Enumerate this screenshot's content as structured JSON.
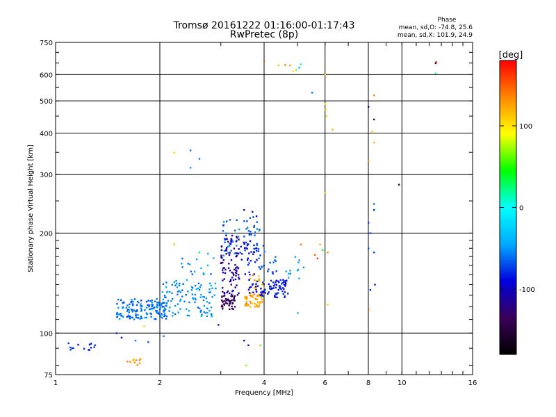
{
  "chart_data": {
    "type": "scatter",
    "title": "Tromsø 20161222 01:16:00-01:17:43",
    "subtitle": "RwPretec (8p)",
    "xlabel": "Frequency [MHz]",
    "ylabel": "Stationary phase Virtual Height [km]",
    "x_scale": "log",
    "y_scale": "log",
    "xlim": [
      1,
      16
    ],
    "ylim": [
      75,
      750
    ],
    "x_ticks": [
      1,
      2,
      4,
      6,
      8,
      10,
      16
    ],
    "y_ticks": [
      75,
      100,
      200,
      300,
      400,
      500,
      600,
      750
    ],
    "grid": true,
    "colorbar": {
      "label": "[deg]",
      "range": [
        -180,
        180
      ],
      "ticks": [
        100,
        0,
        -100
      ],
      "colors": [
        "#000000",
        "#3a005a",
        "#0000dd",
        "#00aaff",
        "#00ffff",
        "#00ff00",
        "#ffff00",
        "#ff8800",
        "#ff0000"
      ]
    },
    "annotation": {
      "title": "Phase",
      "line_o": "mean, sd,O: -74.8, 25.6",
      "line_x": "mean, sd,X: 101.9, 24.9"
    },
    "clusters": [
      {
        "f": [
          1.05,
          1.3
        ],
        "h": [
          88,
          94
        ],
        "phase": [
          -95,
          -70
        ],
        "n": 14
      },
      {
        "f": [
          1.5,
          2.1
        ],
        "h": [
          110,
          127
        ],
        "phase": [
          -75,
          -45
        ],
        "n": 150
      },
      {
        "f": [
          2.0,
          2.9
        ],
        "h": [
          112,
          145
        ],
        "phase": [
          -65,
          -40
        ],
        "n": 110
      },
      {
        "f": [
          2.3,
          2.9
        ],
        "h": [
          145,
          175
        ],
        "phase": [
          -70,
          -40
        ],
        "n": 15
      },
      {
        "f": [
          3.0,
          3.3
        ],
        "h": [
          118,
          130
        ],
        "phase": [
          -150,
          -125
        ],
        "n": 45
      },
      {
        "f": [
          3.0,
          3.4
        ],
        "h": [
          130,
          200
        ],
        "phase": [
          -130,
          -95
        ],
        "n": 90
      },
      {
        "f": [
          3.0,
          3.4
        ],
        "h": [
          170,
          220
        ],
        "phase": [
          -75,
          -50
        ],
        "n": 25
      },
      {
        "f": [
          3.4,
          3.9
        ],
        "h": [
          150,
          190
        ],
        "phase": [
          -100,
          -70
        ],
        "n": 40
      },
      {
        "f": [
          3.5,
          3.9
        ],
        "h": [
          195,
          225
        ],
        "phase": [
          -75,
          -55
        ],
        "n": 20
      },
      {
        "f": [
          3.5,
          3.95
        ],
        "h": [
          120,
          130
        ],
        "phase": [
          110,
          140
        ],
        "n": 45
      },
      {
        "f": [
          3.6,
          4.0
        ],
        "h": [
          130,
          150
        ],
        "phase": [
          100,
          145
        ],
        "n": 25
      },
      {
        "f": [
          3.6,
          4.0
        ],
        "h": [
          130,
          145
        ],
        "phase": [
          -110,
          -80
        ],
        "n": 15
      },
      {
        "f": [
          3.9,
          4.7
        ],
        "h": [
          128,
          145
        ],
        "phase": [
          -100,
          -70
        ],
        "n": 70
      },
      {
        "f": [
          3.8,
          4.4
        ],
        "h": [
          150,
          185
        ],
        "phase": [
          -80,
          -55
        ],
        "n": 20
      },
      {
        "f": [
          4.6,
          5.2
        ],
        "h": [
          145,
          170
        ],
        "phase": [
          -55,
          -40
        ],
        "n": 12
      },
      {
        "f": [
          1.6,
          1.8
        ],
        "h": [
          80,
          84
        ],
        "phase": [
          115,
          140
        ],
        "n": 10
      }
    ],
    "points": [
      {
        "f": 2.2,
        "h": 350,
        "phase": 110
      },
      {
        "f": 2.45,
        "h": 355,
        "phase": -60
      },
      {
        "f": 2.45,
        "h": 315,
        "phase": -50
      },
      {
        "f": 2.6,
        "h": 335,
        "phase": -60
      },
      {
        "f": 2.2,
        "h": 185,
        "phase": 120
      },
      {
        "f": 2.6,
        "h": 175,
        "phase": 30
      },
      {
        "f": 2.75,
        "h": 160,
        "phase": -40
      },
      {
        "f": 2.05,
        "h": 98,
        "phase": -60
      },
      {
        "f": 1.8,
        "h": 105,
        "phase": 110
      },
      {
        "f": 1.5,
        "h": 100,
        "phase": -80
      },
      {
        "f": 1.55,
        "h": 97,
        "phase": -90
      },
      {
        "f": 1.7,
        "h": 95,
        "phase": -60
      },
      {
        "f": 1.85,
        "h": 94,
        "phase": -70
      },
      {
        "f": 2.95,
        "h": 106,
        "phase": -110
      },
      {
        "f": 3.5,
        "h": 95,
        "phase": -100
      },
      {
        "f": 3.6,
        "h": 92,
        "phase": -100
      },
      {
        "f": 3.9,
        "h": 92,
        "phase": 60
      },
      {
        "f": 3.55,
        "h": 80,
        "phase": 70
      },
      {
        "f": 3.5,
        "h": 235,
        "phase": -120
      },
      {
        "f": 3.7,
        "h": 232,
        "phase": -110
      },
      {
        "f": 3.8,
        "h": 225,
        "phase": -100
      },
      {
        "f": 4.0,
        "h": 660,
        "phase": 150
      },
      {
        "f": 4.4,
        "h": 640,
        "phase": 110
      },
      {
        "f": 4.6,
        "h": 642,
        "phase": 140
      },
      {
        "f": 4.75,
        "h": 640,
        "phase": 130
      },
      {
        "f": 4.85,
        "h": 615,
        "phase": 100
      },
      {
        "f": 4.95,
        "h": 620,
        "phase": 70
      },
      {
        "f": 5.05,
        "h": 630,
        "phase": -40
      },
      {
        "f": 5.1,
        "h": 645,
        "phase": 20
      },
      {
        "f": 5.5,
        "h": 530,
        "phase": -60
      },
      {
        "f": 6.0,
        "h": 600,
        "phase": 110
      },
      {
        "f": 6.0,
        "h": 490,
        "phase": 100
      },
      {
        "f": 6.02,
        "h": 470,
        "phase": 105
      },
      {
        "f": 6.05,
        "h": 450,
        "phase": 108
      },
      {
        "f": 6.3,
        "h": 410,
        "phase": 120
      },
      {
        "f": 6.0,
        "h": 265,
        "phase": 110
      },
      {
        "f": 5.8,
        "h": 185,
        "phase": 120
      },
      {
        "f": 5.9,
        "h": 178,
        "phase": 40
      },
      {
        "f": 6.1,
        "h": 175,
        "phase": 130
      },
      {
        "f": 5.1,
        "h": 185,
        "phase": 140
      },
      {
        "f": 5.6,
        "h": 172,
        "phase": 150
      },
      {
        "f": 5.7,
        "h": 168,
        "phase": 160
      },
      {
        "f": 6.1,
        "h": 122,
        "phase": 110
      },
      {
        "f": 5.0,
        "h": 115,
        "phase": -40
      },
      {
        "f": 8.0,
        "h": 480,
        "phase": -120
      },
      {
        "f": 8.3,
        "h": 440,
        "phase": -150
      },
      {
        "f": 8.2,
        "h": 405,
        "phase": 110
      },
      {
        "f": 8.3,
        "h": 375,
        "phase": 120
      },
      {
        "f": 8.0,
        "h": 330,
        "phase": 130
      },
      {
        "f": 8.3,
        "h": 520,
        "phase": 140
      },
      {
        "f": 8.3,
        "h": 245,
        "phase": -60
      },
      {
        "f": 8.3,
        "h": 235,
        "phase": -80
      },
      {
        "f": 8.0,
        "h": 215,
        "phase": -70
      },
      {
        "f": 8.1,
        "h": 200,
        "phase": -70
      },
      {
        "f": 8.0,
        "h": 180,
        "phase": -70
      },
      {
        "f": 8.3,
        "h": 175,
        "phase": -75
      },
      {
        "f": 8.1,
        "h": 135,
        "phase": -80
      },
      {
        "f": 8.35,
        "h": 140,
        "phase": -85
      },
      {
        "f": 8.0,
        "h": 118,
        "phase": 150
      },
      {
        "f": 9.8,
        "h": 280,
        "phase": -140
      },
      {
        "f": 12.5,
        "h": 650,
        "phase": -150
      },
      {
        "f": 12.55,
        "h": 655,
        "phase": 170
      },
      {
        "f": 12.5,
        "h": 605,
        "phase": 20
      }
    ]
  }
}
